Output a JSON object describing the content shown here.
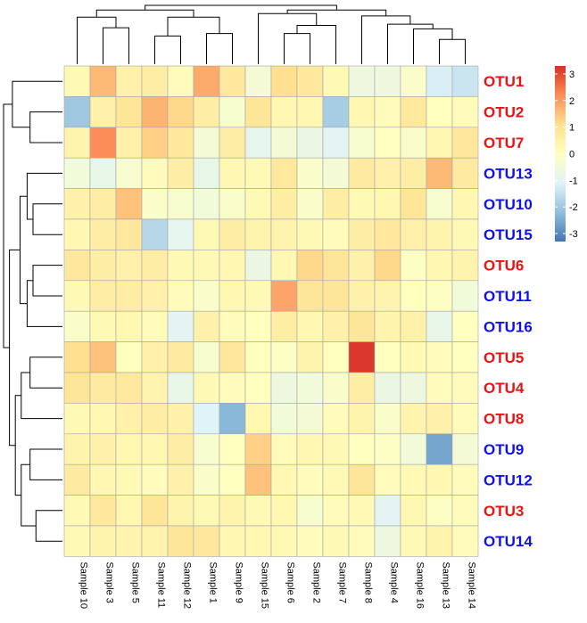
{
  "chart_data": {
    "type": "heatmap",
    "title": "",
    "columns": [
      "Sample 10",
      "Sample 3",
      "Sample 5",
      "Sample 11",
      "Sample 12",
      "Sample 1",
      "Sample 9",
      "Sample 15",
      "Sample 6",
      "Sample 2",
      "Sample 7",
      "Sample 8",
      "Sample 4",
      "Sample 16",
      "Sample 13",
      "Sample 14"
    ],
    "rows": [
      {
        "label": "OTU1",
        "color": "#ee1111",
        "values": [
          0.2,
          1.6,
          0.5,
          0.6,
          0.1,
          1.8,
          0.8,
          -0.4,
          1.1,
          0.8,
          0.2,
          -0.6,
          -0.6,
          -0.2,
          -1.2,
          -1.4
        ]
      },
      {
        "label": "OTU2",
        "color": "#ee1111",
        "values": [
          -2.0,
          0.5,
          0.9,
          1.7,
          1.2,
          0.6,
          -0.3,
          0.9,
          0.3,
          0.3,
          -1.9,
          0.3,
          0.1,
          0.8,
          0.0,
          0.1
        ]
      },
      {
        "label": "OTU7",
        "color": "#ee1111",
        "values": [
          0.4,
          2.2,
          0.5,
          1.3,
          0.8,
          -0.4,
          0.6,
          -0.9,
          -0.4,
          -0.7,
          -1.0,
          -0.3,
          0.0,
          -0.2,
          0.3,
          0.8
        ]
      },
      {
        "label": "OTU13",
        "color": "#1111ee",
        "values": [
          -0.5,
          -0.8,
          -0.3,
          0.1,
          0.6,
          -0.8,
          0.3,
          0.2,
          0.8,
          -0.2,
          -0.4,
          0.7,
          0.5,
          0.6,
          1.6,
          0.7
        ]
      },
      {
        "label": "OTU10",
        "color": "#1111ee",
        "values": [
          0.5,
          0.6,
          1.5,
          -0.2,
          -0.3,
          -0.5,
          -0.2,
          0.2,
          0.6,
          -0.2,
          0.6,
          0.2,
          0.3,
          0.9,
          -0.3,
          0.3
        ]
      },
      {
        "label": "OTU15",
        "color": "#1111ee",
        "values": [
          0.3,
          0.6,
          0.8,
          -1.7,
          -0.9,
          0.2,
          0.6,
          0.4,
          0.4,
          0.2,
          0.1,
          0.6,
          0.8,
          0.5,
          0.4,
          0.2
        ]
      },
      {
        "label": "OTU6",
        "color": "#ee1111",
        "values": [
          0.8,
          0.6,
          0.5,
          0.6,
          0.2,
          0.2,
          0.3,
          -0.7,
          0.3,
          1.2,
          0.9,
          0.5,
          1.2,
          -0.1,
          0.3,
          0.4
        ]
      },
      {
        "label": "OTU11",
        "color": "#1111ee",
        "values": [
          0.2,
          0.6,
          0.6,
          0.5,
          0.1,
          -0.2,
          0.3,
          0.2,
          1.9,
          0.9,
          0.9,
          0.5,
          0.4,
          0.0,
          -0.1,
          -0.5
        ]
      },
      {
        "label": "OTU16",
        "color": "#1111ee",
        "values": [
          -0.2,
          0.2,
          0.3,
          0.1,
          -1.0,
          0.5,
          0.1,
          0.0,
          0.6,
          0.3,
          0.5,
          0.9,
          0.4,
          0.5,
          -0.8,
          0.0
        ]
      },
      {
        "label": "OTU5",
        "color": "#ee1111",
        "values": [
          1.1,
          1.5,
          0.0,
          0.5,
          0.7,
          -0.3,
          0.8,
          0.0,
          -0.1,
          0.4,
          0.0,
          3.2,
          0.0,
          0.2,
          0.1,
          0.0
        ]
      },
      {
        "label": "OTU4",
        "color": "#ee1111",
        "values": [
          0.9,
          0.7,
          0.8,
          0.4,
          -0.8,
          0.2,
          0.1,
          0.0,
          -0.6,
          -0.5,
          -0.2,
          0.6,
          -0.7,
          -0.6,
          0.1,
          0.1
        ]
      },
      {
        "label": "OTU8",
        "color": "#ee1111",
        "values": [
          0.2,
          0.3,
          0.5,
          0.6,
          0.5,
          -1.1,
          -2.3,
          0.3,
          -0.5,
          -0.4,
          0.1,
          0.4,
          -0.2,
          0.4,
          0.5,
          0.1
        ]
      },
      {
        "label": "OTU9",
        "color": "#1111ee",
        "values": [
          0.4,
          0.5,
          0.3,
          0.3,
          0.6,
          -0.3,
          0.0,
          1.3,
          0.1,
          0.3,
          0.2,
          0.0,
          -0.1,
          -0.5,
          -2.6,
          -0.4
        ]
      },
      {
        "label": "OTU12",
        "color": "#1111ee",
        "values": [
          0.7,
          0.3,
          0.2,
          0.1,
          0.5,
          -0.2,
          0.0,
          1.5,
          0.3,
          0.1,
          0.2,
          0.9,
          0.1,
          0.2,
          0.3,
          0.1
        ]
      },
      {
        "label": "OTU3",
        "color": "#ee1111",
        "values": [
          0.2,
          0.8,
          0.3,
          0.9,
          0.4,
          0.2,
          0.4,
          0.2,
          0.3,
          -0.3,
          0.1,
          0.2,
          -1.0,
          0.3,
          -0.1,
          0.1
        ]
      },
      {
        "label": "OTU14",
        "color": "#1111ee",
        "values": [
          0.2,
          0.4,
          0.4,
          0.4,
          0.9,
          0.8,
          0.3,
          0.3,
          0.2,
          0.1,
          0.2,
          0.1,
          -0.6,
          0.2,
          0.4,
          0.1
        ]
      }
    ],
    "color_scale": {
      "range": [
        -3.3,
        3.3
      ],
      "stops": [
        "#4575b4",
        "#91bfdb",
        "#e0f3f8",
        "#ffffbf",
        "#fee090",
        "#fc8d59",
        "#d73027"
      ],
      "legend_ticks": [
        3,
        2,
        1,
        0,
        -1,
        -2,
        -3
      ],
      "legend_position": "right"
    },
    "column_dendrogram": true,
    "row_dendrogram": true,
    "grid": true
  }
}
